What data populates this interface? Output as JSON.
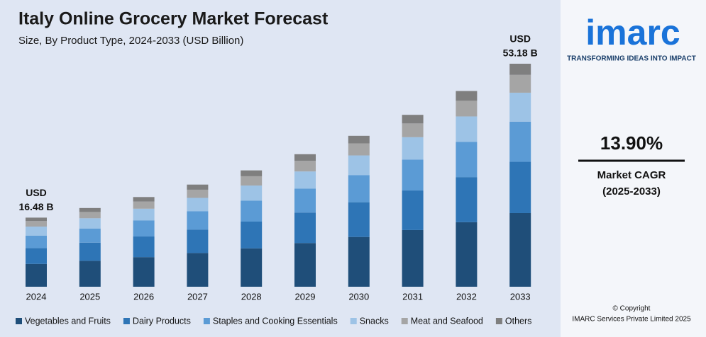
{
  "chart_data": {
    "type": "stacked_bar",
    "title": "Italy Online Grocery Market Forecast",
    "subtitle": "Size, By Product Type, 2024-2033 (USD Billion)",
    "categories": [
      "2024",
      "2025",
      "2026",
      "2027",
      "2028",
      "2029",
      "2030",
      "2031",
      "2032",
      "2033"
    ],
    "series": [
      {
        "name": "Vegetables and Fruits",
        "color": "#1f4e79",
        "values": [
          5.44,
          6.19,
          7.06,
          8.04,
          9.15,
          10.42,
          11.87,
          13.52,
          15.4,
          17.56
        ]
      },
      {
        "name": "Dairy Products",
        "color": "#2e75b6",
        "values": [
          3.79,
          4.32,
          4.92,
          5.6,
          6.38,
          7.27,
          8.28,
          9.43,
          10.74,
          12.23
        ]
      },
      {
        "name": "Staples and Cooking Essentials",
        "color": "#5b9bd5",
        "values": [
          2.97,
          3.38,
          3.85,
          4.38,
          4.99,
          5.69,
          6.48,
          7.38,
          8.4,
          9.57
        ]
      },
      {
        "name": "Snacks",
        "color": "#9dc3e6",
        "values": [
          2.14,
          2.44,
          2.78,
          3.17,
          3.61,
          4.11,
          4.68,
          5.33,
          6.07,
          6.91
        ]
      },
      {
        "name": "Meat and Seafood",
        "color": "#a5a5a5",
        "values": [
          1.32,
          1.5,
          1.71,
          1.95,
          2.22,
          2.53,
          2.88,
          3.28,
          3.73,
          4.25
        ]
      },
      {
        "name": "Others",
        "color": "#7f7f7f",
        "values": [
          0.82,
          0.94,
          1.07,
          1.22,
          1.39,
          1.58,
          1.8,
          2.05,
          2.33,
          2.66
        ]
      }
    ],
    "annotations": [
      {
        "category_index": 0,
        "lines": [
          "USD",
          "16.48 B"
        ]
      },
      {
        "category_index": 9,
        "lines": [
          "USD",
          "53.18 B"
        ]
      }
    ],
    "legend": "bottom"
  },
  "panel": {
    "logo": "imarc",
    "tagline": "TRANSFORMING IDEAS INTO IMPACT",
    "cagr": "13.90%",
    "cagr_label": "Market CAGR",
    "cagr_period": "(2025-2033)",
    "copyright": [
      "© Copyright",
      "IMARC Services Private Limited 2025"
    ]
  }
}
